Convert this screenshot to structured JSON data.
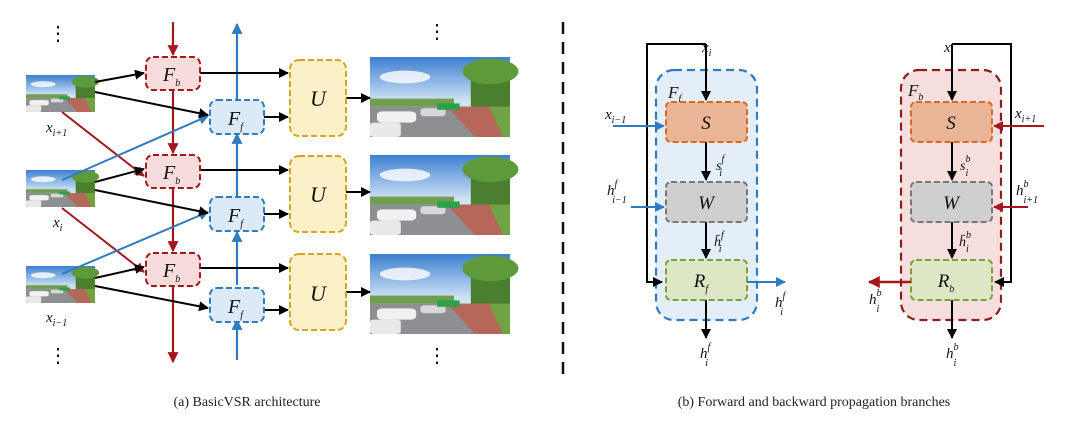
{
  "captions": {
    "a": "(a) BasicVSR architecture",
    "b": "(b) Forward and backward propagation branches"
  },
  "left": {
    "modules": {
      "fb": {
        "base": "F",
        "sub": "b"
      },
      "ff": {
        "base": "F",
        "sub": "f"
      },
      "u": "U"
    },
    "inputs": {
      "top": {
        "base": "x",
        "sub": "i+1"
      },
      "mid": {
        "base": "x",
        "sub": "i"
      },
      "bot": {
        "base": "x",
        "sub": "i−1"
      }
    },
    "ellipsis": "⋮"
  },
  "forward_branch": {
    "label": {
      "base": "F",
      "sub": "f"
    },
    "in_top": {
      "base": "x",
      "sub": "i"
    },
    "in_prev": {
      "base": "x",
      "sub": "i−1"
    },
    "in_h": {
      "base": "h",
      "sup": "f",
      "sub": "i−1"
    },
    "s": "S",
    "s_out": {
      "base": "s",
      "sup": "f",
      "sub": "i"
    },
    "w": "W",
    "w_out": {
      "base": "h̄",
      "sup": "f",
      "sub": "i"
    },
    "r": {
      "base": "R",
      "sub": "f"
    },
    "out_right": {
      "base": "h",
      "sup": "f",
      "sub": "i"
    },
    "out_bottom": {
      "base": "h",
      "sup": "f",
      "sub": "i"
    }
  },
  "backward_branch": {
    "label": {
      "base": "F",
      "sub": "b"
    },
    "in_top": {
      "base": "x",
      "sub": "i"
    },
    "in_next": {
      "base": "x",
      "sub": "i+1"
    },
    "in_h": {
      "base": "h",
      "sup": "b",
      "sub": "i+1"
    },
    "s": "S",
    "s_out": {
      "base": "s",
      "sup": "b",
      "sub": "i"
    },
    "w": "W",
    "w_out": {
      "base": "h̄",
      "sup": "b",
      "sub": "i"
    },
    "r": {
      "base": "R",
      "sub": "b"
    },
    "out_left": {
      "base": "h",
      "sup": "b",
      "sub": "i"
    },
    "out_bottom": {
      "base": "h",
      "sup": "b",
      "sub": "i"
    }
  },
  "colors": {
    "red": "#a4171b",
    "blue": "#2f7bbf",
    "gold": "#d4a51c",
    "fb_fill": "#f7dcdc",
    "ff_fill": "#dce9f7",
    "u_fill": "#fbf0c8",
    "s_fill": "#eab596",
    "s_stroke": "#d9691f",
    "w_fill": "#cfcfcf",
    "w_stroke": "#777777",
    "r_fill": "#dde7c5",
    "r_stroke": "#78a23c"
  }
}
